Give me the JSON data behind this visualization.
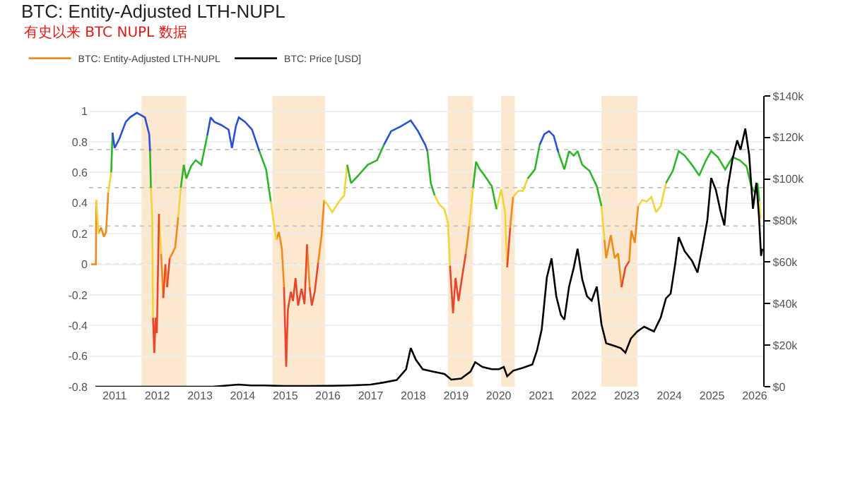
{
  "chart_data": {
    "type": "line",
    "title": "BTC: Entity-Adjusted LTH-NUPL",
    "subtitle": "有史以来 BTC NUPL 数据",
    "xlim": [
      2010.4,
      2026.2
    ],
    "xticks": [
      2011,
      2012,
      2013,
      2014,
      2015,
      2016,
      2017,
      2018,
      2019,
      2020,
      2021,
      2022,
      2023,
      2024,
      2025,
      2026
    ],
    "ylim": [
      -0.8,
      1.1
    ],
    "yticks": [
      -0.8,
      -0.6,
      -0.4,
      -0.2,
      0,
      0.2,
      0.4,
      0.6,
      0.8,
      1
    ],
    "y2lim": [
      0,
      140000
    ],
    "y2ticks": [
      {
        "value": 0,
        "label": "$0"
      },
      {
        "value": 20000,
        "label": "$20k"
      },
      {
        "value": 40000,
        "label": "$40k"
      },
      {
        "value": 60000,
        "label": "$60k"
      },
      {
        "value": 80000,
        "label": "$80k"
      },
      {
        "value": 100000,
        "label": "$100k"
      },
      {
        "value": 120000,
        "label": "$120k"
      },
      {
        "value": 140000,
        "label": "$140k"
      }
    ],
    "grid": "y",
    "legend": "top left",
    "series": [
      {
        "name": "BTC: Entity-Adjusted LTH-NUPL",
        "color": "#f08a1a",
        "x": [
          2010.45,
          2010.56,
          2010.57,
          null,
          2010.62,
          2010.68,
          2010.75,
          2010.8,
          2010.85,
          null,
          2012.09,
          2012.14,
          null,
          2012.19,
          2012.23,
          null,
          2012.29,
          2012.35,
          2012.42,
          2012.49,
          null,
          2014.79,
          2014.85,
          2014.92,
          2014.97,
          null,
          2015.51,
          2015.57,
          null,
          2015.77,
          2015.85,
          2015.91,
          null,
          2019.23,
          2019.31,
          null,
          2020.27,
          2020.34,
          null,
          2022.48,
          2022.52,
          2022.63,
          2022.72,
          2022.8,
          2022.88,
          null,
          2023.06,
          2023.11,
          2023.19,
          2023.27
        ],
        "values": [
          0,
          0,
          0.42,
          null,
          0.2,
          0.24,
          0.18,
          0.21,
          0.47,
          null,
          0.07,
          -0.22,
          null,
          0,
          -0.15,
          null,
          0.04,
          0.07,
          0.11,
          0.31,
          null,
          0.16,
          0.21,
          0.1,
          -0.15,
          null,
          0.13,
          -0.15,
          null,
          0.01,
          0.19,
          0.42,
          null,
          0.07,
          0.25,
          null,
          0.24,
          0.44,
          null,
          0.16,
          0.04,
          0.19,
          0.04,
          0.07,
          -0.15,
          null,
          0.02,
          0.22,
          0.14,
          0.38
        ]
      },
      {
        "color": "#f0d43a",
        "x": [
          2010.57,
          2010.62,
          null,
          2010.85,
          2010.92,
          null,
          2011.85,
          2011.88,
          2011.9,
          null,
          2012.04,
          2012.09,
          null,
          2012.49,
          2012.55,
          null,
          2014.66,
          2014.74,
          2014.79,
          null,
          2015.91,
          2015.99,
          2016.1,
          2016.26,
          2016.38,
          2016.45,
          null,
          2018.5,
          2018.61,
          2018.73,
          2018.81,
          2018.86,
          null,
          2019.31,
          2019.4,
          null,
          2019.95,
          2020.06,
          2020.15,
          2020.2,
          null,
          2020.34,
          2020.46,
          2020.57,
          2020.68,
          null,
          2022.41,
          2022.48,
          null,
          2023.27,
          2023.36,
          2023.47,
          2023.58,
          2023.69,
          2023.8,
          2023.92,
          null,
          2026.0,
          2026.07,
          null,
          2026.11,
          2026.14
        ],
        "values": [
          0.42,
          0.2,
          null,
          0.47,
          0.6,
          null,
          0.5,
          0.3,
          -0.35,
          null,
          0.33,
          0.07,
          null,
          0.31,
          0.5,
          null,
          0.41,
          0.25,
          0.16,
          null,
          0.42,
          0.39,
          0.34,
          0.41,
          0.45,
          0.65,
          null,
          0.45,
          0.39,
          0.36,
          0.27,
          -0.01,
          null,
          0.25,
          0.5,
          null,
          0.36,
          0.49,
          0.34,
          -0.02,
          null,
          0.44,
          0.48,
          0.48,
          0.56,
          null,
          0.38,
          0.16,
          null,
          0.38,
          0.42,
          0.41,
          0.44,
          0.34,
          0.38,
          0.53,
          null,
          0.47,
          0.53,
          null,
          0.41,
          0.3
        ]
      },
      {
        "color": "#2fb52a",
        "x": [
          2010.92,
          2010.95,
          null,
          2011.83,
          2011.85,
          null,
          2012.55,
          2012.62,
          2012.68,
          2012.79,
          2012.9,
          2013.03,
          2013.17,
          null,
          2014.39,
          2014.55,
          2014.66,
          null,
          2016.45,
          2016.54,
          2016.71,
          2016.93,
          2017.15,
          2017.31,
          null,
          2018.33,
          2018.41,
          2018.5,
          null,
          2019.4,
          2019.47,
          2019.56,
          2019.67,
          2019.84,
          2019.95,
          null,
          2020.68,
          2020.85,
          2020.96,
          null,
          2021.4,
          2021.54,
          2021.65,
          2021.76,
          2021.85,
          2021.96,
          2022.13,
          2022.3,
          2022.41,
          null,
          2023.92,
          2024.08,
          2024.22,
          2024.36,
          2024.53,
          2024.7,
          2024.86,
          2024.98,
          2025.14,
          2025.31,
          2025.48,
          2025.65,
          2025.81,
          2025.92,
          2026.0,
          null,
          2026.07,
          2026.11
        ],
        "values": [
          0.6,
          0.86,
          null,
          0.74,
          0.5,
          null,
          0.5,
          0.65,
          0.56,
          0.64,
          0.68,
          0.65,
          0.84,
          null,
          0.74,
          0.62,
          0.41,
          null,
          0.65,
          0.53,
          0.58,
          0.65,
          0.68,
          0.78,
          null,
          0.74,
          0.53,
          0.45,
          null,
          0.5,
          0.67,
          0.62,
          0.58,
          0.51,
          0.36,
          null,
          0.56,
          0.62,
          0.78,
          null,
          0.73,
          0.62,
          0.74,
          0.71,
          0.74,
          0.65,
          0.61,
          0.51,
          0.38,
          null,
          0.53,
          0.61,
          0.74,
          0.71,
          0.65,
          0.58,
          0.68,
          0.74,
          0.7,
          0.62,
          0.7,
          0.68,
          0.64,
          0.51,
          0.47,
          null,
          0.53,
          0.41
        ]
      },
      {
        "color": "#2a4fd6",
        "x": [
          2010.95,
          2011.0,
          2011.11,
          2011.26,
          2011.36,
          2011.52,
          2011.71,
          2011.81,
          2011.83,
          null,
          2013.17,
          2013.25,
          2013.34,
          2013.5,
          2013.67,
          2013.75,
          2013.84,
          2013.91,
          2014.06,
          2014.22,
          2014.39,
          null,
          2017.31,
          2017.48,
          2017.7,
          2017.94,
          2018.11,
          2018.28,
          2018.33,
          null,
          2020.96,
          2021.07,
          2021.18,
          2021.29,
          2021.4
        ],
        "values": [
          0.86,
          0.76,
          0.82,
          0.93,
          0.96,
          0.99,
          0.96,
          0.85,
          0.74,
          null,
          0.84,
          0.96,
          0.93,
          0.91,
          0.88,
          0.76,
          0.9,
          0.96,
          0.93,
          0.88,
          0.74,
          null,
          0.78,
          0.87,
          0.9,
          0.94,
          0.87,
          0.78,
          0.74,
          null,
          0.78,
          0.85,
          0.87,
          0.84,
          0.73
        ]
      },
      {
        "color": "#e8452c",
        "x": [
          2011.9,
          2011.93,
          2011.96,
          2011.99,
          2012.04,
          null,
          2012.14,
          2012.19,
          null,
          2012.23,
          2012.29,
          null,
          2014.97,
          2015.02,
          2015.06,
          2015.13,
          2015.18,
          2015.24,
          2015.3,
          2015.38,
          2015.45,
          2015.51,
          null,
          2015.57,
          2015.62,
          2015.69,
          2015.77,
          null,
          2018.86,
          2018.93,
          2018.99,
          2019.06,
          2019.15,
          2019.23,
          null,
          2020.2,
          2020.27,
          null,
          2022.88,
          2022.97,
          2023.06
        ],
        "values": [
          -0.35,
          -0.58,
          -0.35,
          -0.45,
          0.33,
          null,
          -0.22,
          0,
          null,
          -0.15,
          0.04,
          null,
          -0.15,
          -0.67,
          -0.3,
          -0.18,
          -0.24,
          -0.09,
          -0.27,
          -0.16,
          -0.26,
          0.13,
          null,
          -0.15,
          -0.27,
          -0.18,
          0.01,
          null,
          -0.01,
          -0.32,
          -0.09,
          -0.24,
          -0.07,
          0.07,
          null,
          -0.02,
          0.24,
          null,
          -0.15,
          -0.02,
          0.02
        ]
      },
      {
        "name": "BTC: Price [USD]",
        "color": "#000000",
        "axis": "y2",
        "x": [
          2010.55,
          2011.5,
          2012.5,
          2013.3,
          2013.9,
          2014.2,
          2014.5,
          2015.0,
          2015.5,
          2016.0,
          2016.5,
          2017.0,
          2017.3,
          2017.61,
          2017.83,
          2017.94,
          2018.06,
          2018.22,
          2018.45,
          2018.73,
          2018.89,
          2019.12,
          2019.34,
          2019.45,
          2019.62,
          2019.84,
          2020.01,
          2020.12,
          2020.2,
          2020.34,
          2020.57,
          2020.79,
          2020.9,
          2021.01,
          2021.13,
          2021.24,
          2021.35,
          2021.46,
          2021.54,
          2021.65,
          2021.76,
          2021.85,
          2021.96,
          2022.07,
          2022.18,
          2022.3,
          2022.41,
          2022.52,
          2022.69,
          2022.86,
          2022.97,
          2023.1,
          2023.25,
          2023.41,
          2023.64,
          2023.8,
          2023.92,
          2024.03,
          2024.14,
          2024.22,
          2024.36,
          2024.53,
          2024.66,
          2024.77,
          2024.89,
          2024.98,
          2025.09,
          2025.2,
          2025.29,
          2025.37,
          2025.48,
          2025.59,
          2025.67,
          2025.78,
          2025.87,
          2025.96,
          2026.04,
          2026.1,
          2026.15,
          2026.18
        ],
        "values": [
          0,
          0,
          0,
          0,
          1000,
          600,
          600,
          300,
          300,
          400,
          600,
          1000,
          2000,
          3200,
          8400,
          18600,
          13000,
          8400,
          7300,
          6100,
          3400,
          3900,
          7300,
          11800,
          9500,
          8400,
          8400,
          9500,
          5000,
          7700,
          9100,
          10700,
          17500,
          27700,
          52700,
          61800,
          43600,
          34500,
          32300,
          48200,
          57300,
          66400,
          51600,
          43600,
          41400,
          48200,
          30000,
          20900,
          19800,
          18600,
          16400,
          23200,
          26600,
          28900,
          26600,
          33400,
          42500,
          44800,
          59500,
          72000,
          65200,
          60700,
          55000,
          66400,
          80000,
          100500,
          94800,
          84500,
          77700,
          95900,
          109500,
          118600,
          114100,
          124300,
          111800,
          85700,
          98200,
          82300,
          63000,
          66400
        ]
      }
    ],
    "ref_lines": [
      {
        "axis": "y",
        "value": 0.75,
        "color": "#c8c8c8",
        "line_style": "dotted"
      },
      {
        "axis": "y",
        "value": 0.5,
        "color": "#c8c8c8",
        "line_style": "dotted"
      },
      {
        "axis": "y",
        "value": 0.25,
        "color": "#c8c8c8",
        "line_style": "dotted"
      },
      {
        "axis": "y",
        "value": 0,
        "color": "#c8c8c8",
        "line_style": "dotted"
      }
    ],
    "bands": [
      {
        "axis": "x",
        "from": 2011.63,
        "to": 2012.68,
        "color": "#fbe2c2"
      },
      {
        "axis": "x",
        "from": 2014.7,
        "to": 2015.93,
        "color": "#fbe2c2"
      },
      {
        "axis": "x",
        "from": 2018.81,
        "to": 2019.4,
        "color": "#fbe2c2"
      },
      {
        "axis": "x",
        "from": 2020.06,
        "to": 2020.38,
        "color": "#fbe2c2"
      },
      {
        "axis": "x",
        "from": 2022.41,
        "to": 2023.25,
        "color": "#fbe2c2"
      }
    ]
  }
}
